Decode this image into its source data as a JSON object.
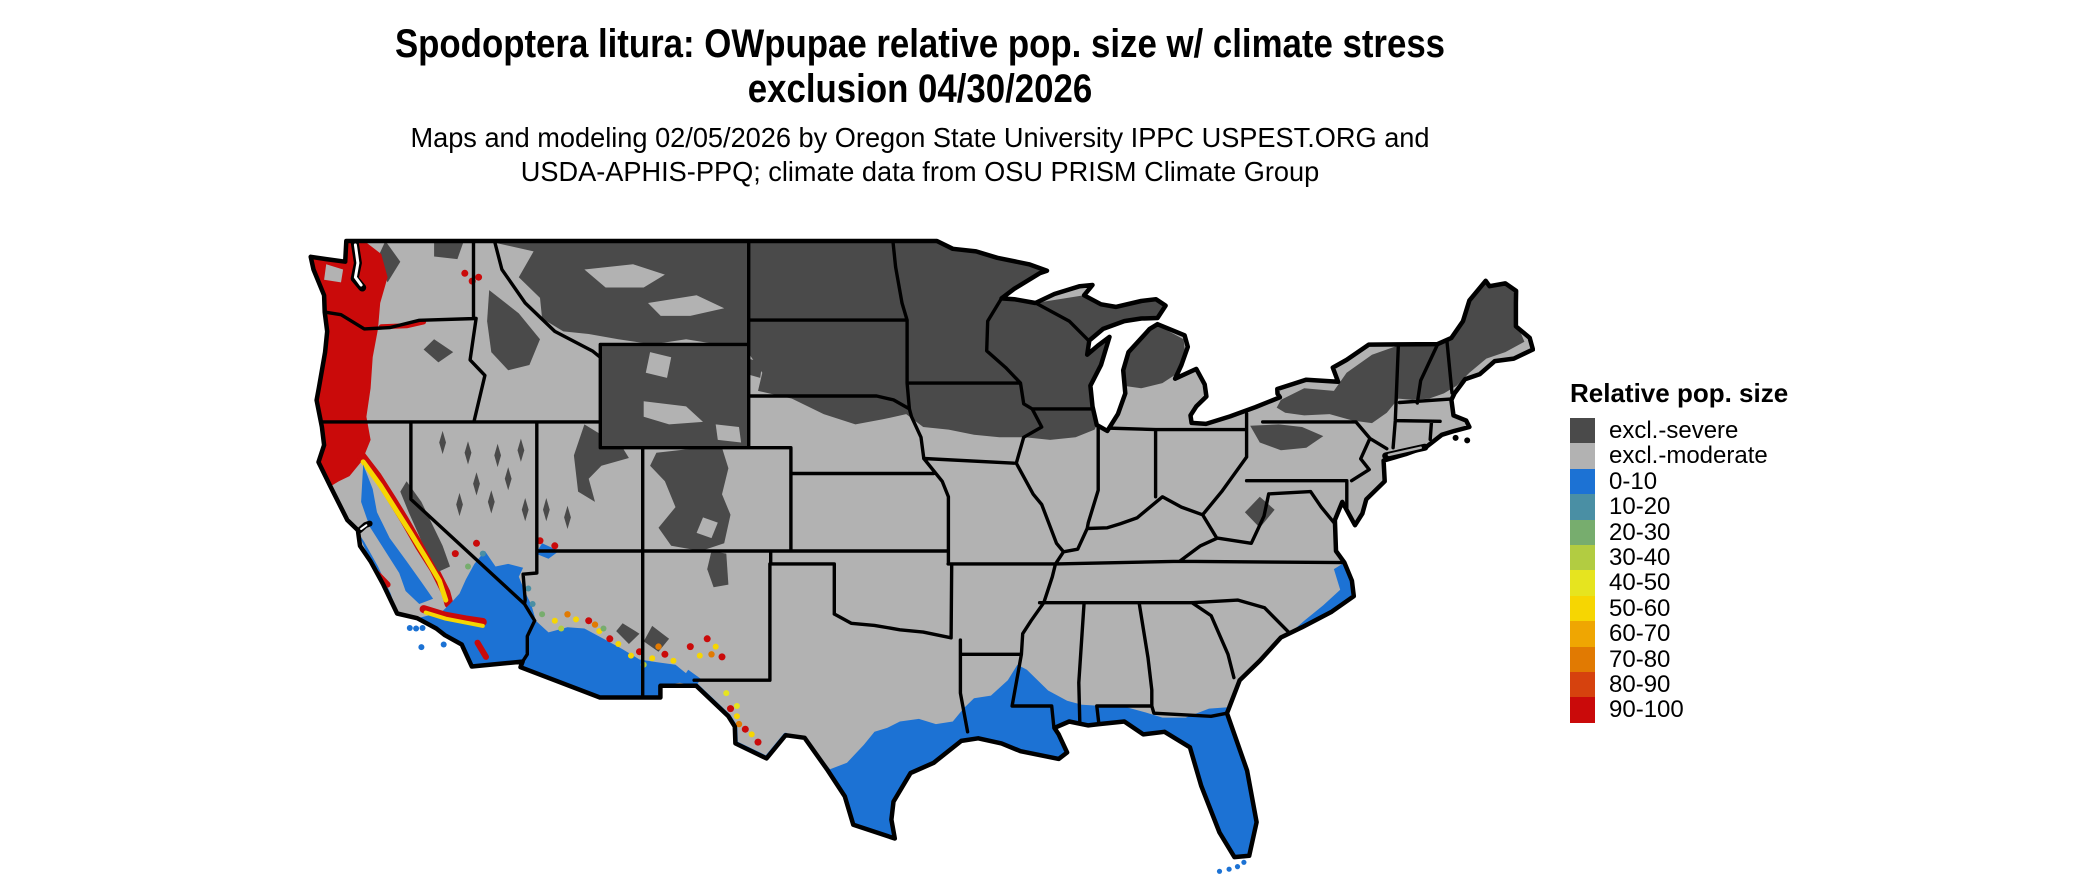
{
  "title": {
    "line1": "Spodoptera litura: OWpupae relative pop. size w/ climate stress",
    "line2": "exclusion 04/30/2026"
  },
  "subtitle": {
    "line1": "Maps and modeling 02/05/2026 by Oregon State University IPPC USPEST.ORG and",
    "line2": "USDA-APHIS-PPQ; climate data from OSU PRISM Climate Group"
  },
  "legend": {
    "title": "Relative pop. size",
    "items": [
      {
        "label": "excl.-severe",
        "color": "#4a4a4a"
      },
      {
        "label": "excl.-moderate",
        "color": "#b2b2b2"
      },
      {
        "label": "0-10",
        "color": "#1c72d4"
      },
      {
        "label": "10-20",
        "color": "#4a8fa4"
      },
      {
        "label": "20-30",
        "color": "#77ad6e"
      },
      {
        "label": "30-40",
        "color": "#b2cc41"
      },
      {
        "label": "40-50",
        "color": "#e6e41f"
      },
      {
        "label": "50-60",
        "color": "#f6d602"
      },
      {
        "label": "60-70",
        "color": "#efa602"
      },
      {
        "label": "70-80",
        "color": "#e17a02"
      },
      {
        "label": "80-90",
        "color": "#d6420e"
      },
      {
        "label": "90-100",
        "color": "#ca0a0a"
      }
    ]
  },
  "map": {
    "region_shown": "Continental United States",
    "border_color": "#000000",
    "background_color": "#ffffff"
  }
}
